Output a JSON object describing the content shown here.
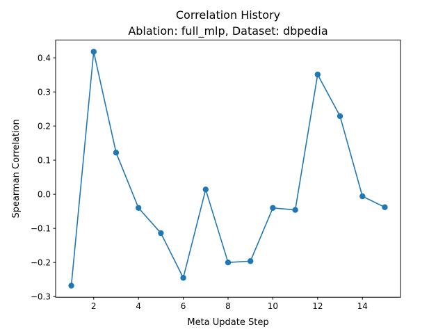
{
  "chart_data": {
    "type": "line",
    "title": "Correlation History",
    "subtitle": "Ablation: full_mlp, Dataset: dbpedia",
    "xlabel": "Meta Update Step",
    "ylabel": "Spearman Correlation",
    "xlim": [
      0.3,
      15.7
    ],
    "ylim": [
      -0.302,
      0.452
    ],
    "xticks": [
      2,
      4,
      6,
      8,
      10,
      12,
      14
    ],
    "yticks": [
      -0.3,
      -0.2,
      -0.1,
      0.0,
      0.1,
      0.2,
      0.3,
      0.4
    ],
    "ytick_labels": [
      "−0.3",
      "−0.2",
      "−0.1",
      "0.0",
      "0.1",
      "0.2",
      "0.3",
      "0.4"
    ],
    "grid": false,
    "legend": "none",
    "series": [
      {
        "color": "#1f77b4",
        "marker": "circle",
        "x": [
          1,
          2,
          3,
          4,
          5,
          6,
          7,
          8,
          9,
          10,
          11,
          12,
          13,
          14,
          15
        ],
        "y": [
          -0.268,
          0.418,
          0.122,
          -0.04,
          -0.114,
          -0.245,
          0.014,
          -0.2,
          -0.196,
          -0.04,
          -0.046,
          0.351,
          0.229,
          -0.006,
          -0.038
        ]
      }
    ]
  }
}
